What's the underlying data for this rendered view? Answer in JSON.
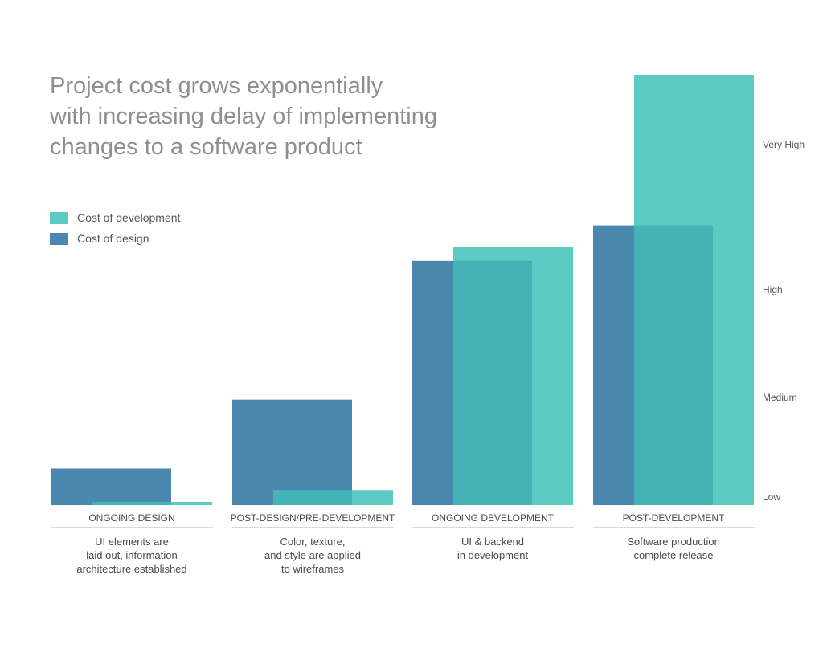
{
  "chart_data": {
    "type": "bar",
    "title_lines": [
      "Project cost grows exponentially",
      "with increasing delay of implementing",
      "changes to a software product"
    ],
    "categories": [
      "ONGOING DESIGN",
      "POST-DESIGN/PRE-DEVELOPMENT",
      "ONGOING DEVELOPMENT",
      "POST-DEVELOPMENT"
    ],
    "descriptions": [
      [
        "UI elements are",
        "laid out, information",
        "architecture established"
      ],
      [
        "Color, texture,",
        "and style are applied",
        "to wireframes"
      ],
      [
        "UI & backend",
        "in development"
      ],
      [
        "Software production",
        "complete release"
      ]
    ],
    "series": [
      {
        "name": "Cost of design",
        "color": "#4a88b0",
        "values": [
          0.34,
          0.98,
          2.27,
          2.6
        ]
      },
      {
        "name": "Cost of development",
        "color": "#5ccbc3",
        "values": [
          0.03,
          0.14,
          2.4,
          4.0
        ]
      }
    ],
    "overlap_color": "#44b3b6",
    "y_ticks": [
      {
        "label": "Low",
        "value": 0
      },
      {
        "label": "Medium",
        "value": 1
      },
      {
        "label": "High",
        "value": 2
      },
      {
        "label": "Very High",
        "value": 3.35
      }
    ],
    "ylim": [
      0,
      4.0
    ],
    "legend": [
      {
        "label": "Cost of development",
        "color": "#5ccbc3"
      },
      {
        "label": "Cost of design",
        "color": "#4a88b0"
      }
    ]
  }
}
